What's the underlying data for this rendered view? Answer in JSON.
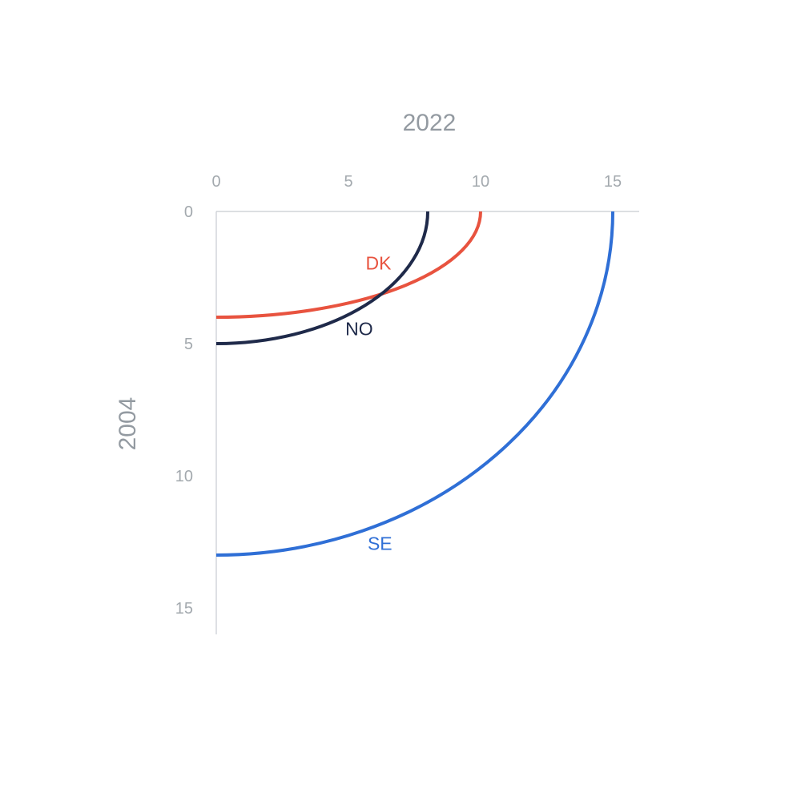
{
  "chart_data": {
    "type": "line",
    "subtype": "quarter-ellipse",
    "xlabel": "2022",
    "ylabel": "2004",
    "x_axis_position": "top",
    "y_axis_inverted": true,
    "xlim": [
      0,
      16
    ],
    "ylim": [
      0,
      16
    ],
    "xticks": [
      {
        "value": 0,
        "label": "0"
      },
      {
        "value": 5,
        "label": "5"
      },
      {
        "value": 10,
        "label": "10"
      },
      {
        "value": 15,
        "label": "15"
      }
    ],
    "yticks": [
      {
        "value": 0,
        "label": "0"
      },
      {
        "value": 5,
        "label": "5"
      },
      {
        "value": 10,
        "label": "10"
      },
      {
        "value": 15,
        "label": "15"
      }
    ],
    "grid": false,
    "legend": "none",
    "series": [
      {
        "name": "DK",
        "x_value": 10,
        "y_value": 4,
        "color": "#e8533f"
      },
      {
        "name": "NO",
        "x_value": 8,
        "y_value": 5,
        "color": "#1f2a4a"
      },
      {
        "name": "SE",
        "x_value": 15,
        "y_value": 13,
        "color": "#2f6fd6"
      }
    ],
    "colors": {
      "axis": "#c8ccd1",
      "tick_text": "#a3a9ae",
      "axis_title": "#939aa1"
    }
  }
}
